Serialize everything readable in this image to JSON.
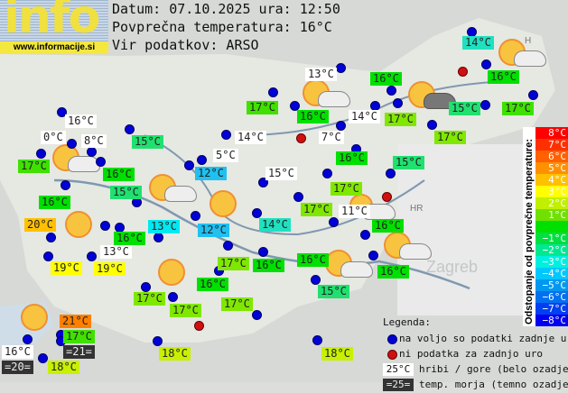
{
  "logo": {
    "text": "info",
    "url": "www.informacije.si"
  },
  "header": {
    "date": "Datum: 07.10.2025 ura: 12:50",
    "avg_temp": "Povprečna temperatura: 16°C",
    "source": "Vir podatkov: ARSO"
  },
  "stations": [
    {
      "temp": "14°C",
      "color": "#20e0c0"
    },
    {
      "temp": "16°C",
      "color": "#00e000"
    },
    {
      "temp": "13°C",
      "color": "#ffffff"
    },
    {
      "temp": "16°C",
      "color": "#00e000"
    },
    {
      "temp": "17°C",
      "color": "#40e000"
    },
    {
      "temp": "16°C",
      "color": "#00e000"
    },
    {
      "temp": "14°C",
      "color": "#ffffff"
    },
    {
      "temp": "17°C",
      "color": "#80e800"
    },
    {
      "temp": "15°C",
      "color": "#20e070"
    },
    {
      "temp": "17°C",
      "color": "#40e000"
    },
    {
      "temp": "7°C",
      "color": "#ffffff"
    },
    {
      "temp": "17°C",
      "color": "#80e800"
    },
    {
      "temp": "16°C",
      "color": "#ffffff"
    },
    {
      "temp": "0°C",
      "color": "#ffffff"
    },
    {
      "temp": "8°C",
      "color": "#ffffff"
    },
    {
      "temp": "15°C",
      "color": "#20e070"
    },
    {
      "temp": "14°C",
      "color": "#ffffff"
    },
    {
      "temp": "17°C",
      "color": "#40e000"
    },
    {
      "temp": "16°C",
      "color": "#00e000"
    },
    {
      "temp": "5°C",
      "color": "#ffffff"
    },
    {
      "temp": "12°C",
      "color": "#20c0f0"
    },
    {
      "temp": "15°C",
      "color": "#ffffff"
    },
    {
      "temp": "16°C",
      "color": "#00e000"
    },
    {
      "temp": "15°C",
      "color": "#20e070"
    },
    {
      "temp": "17°C",
      "color": "#80e800"
    },
    {
      "temp": "15°C",
      "color": "#20e070"
    },
    {
      "temp": "16°C",
      "color": "#00e000"
    },
    {
      "temp": "17°C",
      "color": "#80e800"
    },
    {
      "temp": "11°C",
      "color": "#ffffff"
    },
    {
      "temp": "16°C",
      "color": "#00e000"
    },
    {
      "temp": "14°C",
      "color": "#20e0c0"
    },
    {
      "temp": "13°C",
      "color": "#00e8f0"
    },
    {
      "temp": "12°C",
      "color": "#20c0f0"
    },
    {
      "temp": "20°C",
      "color": "#ffc000"
    },
    {
      "temp": "16°C",
      "color": "#00e000"
    },
    {
      "temp": "13°C",
      "color": "#ffffff"
    },
    {
      "temp": "19°C",
      "color": "#ffff00"
    },
    {
      "temp": "19°C",
      "color": "#ffff00"
    },
    {
      "temp": "17°C",
      "color": "#80e800"
    },
    {
      "temp": "16°C",
      "color": "#00e000"
    },
    {
      "temp": "16°C",
      "color": "#00e000"
    },
    {
      "temp": "16°C",
      "color": "#00e000"
    },
    {
      "temp": "15°C",
      "color": "#20e070"
    },
    {
      "temp": "16°C",
      "color": "#00e000"
    },
    {
      "temp": "17°C",
      "color": "#80e800"
    },
    {
      "temp": "17°C",
      "color": "#80e800"
    },
    {
      "temp": "17°C",
      "color": "#80e800"
    },
    {
      "temp": "21°C",
      "color": "#ff8000"
    },
    {
      "temp": "17°C",
      "color": "#40e000"
    },
    {
      "temp": "16°C",
      "color": "#ffffff"
    },
    {
      "temp": "=20=",
      "color": "#333333"
    },
    {
      "temp": "=21=",
      "color": "#333333"
    },
    {
      "temp": "18°C",
      "color": "#c8f000"
    },
    {
      "temp": "18°C",
      "color": "#c8f000"
    },
    {
      "temp": "18°C",
      "color": "#c8f000"
    }
  ],
  "scale": {
    "title": "Odstopanje od povprečne temperature:",
    "steps": [
      {
        "label": "8°C",
        "color": "#ff0000"
      },
      {
        "label": "7°C",
        "color": "#ff3000"
      },
      {
        "label": "6°C",
        "color": "#ff6000"
      },
      {
        "label": "5°C",
        "color": "#ff9000"
      },
      {
        "label": "4°C",
        "color": "#ffc000"
      },
      {
        "label": "3°C",
        "color": "#ffff00"
      },
      {
        "label": "2°C",
        "color": "#c0f000"
      },
      {
        "label": "1°C",
        "color": "#70e000"
      },
      {
        "label": "",
        "color": "#00e000"
      },
      {
        "label": "−1°C",
        "color": "#00e040"
      },
      {
        "label": "−2°C",
        "color": "#00e890"
      },
      {
        "label": "−3°C",
        "color": "#00f0e0"
      },
      {
        "label": "−4°C",
        "color": "#00c8ff"
      },
      {
        "label": "−5°C",
        "color": "#0098f0"
      },
      {
        "label": "−6°C",
        "color": "#0070f0"
      },
      {
        "label": "−7°C",
        "color": "#0040f0"
      },
      {
        "label": "−8°C",
        "color": "#0000f0"
      }
    ]
  },
  "legend": {
    "title": "Legenda:",
    "blue_dot": "na voljo so podatki zadnje ure",
    "red_dot": "ni podatka za zadnjo uro",
    "mountain_sample": "25°C",
    "mountain": "hribi / gore (belo ozadje)",
    "sea_sample": "=25=",
    "sea": "temp. morja (temno ozadje)"
  },
  "map_labels": {
    "hr": "HR",
    "h": "H",
    "zagreb": "Zagreb"
  }
}
